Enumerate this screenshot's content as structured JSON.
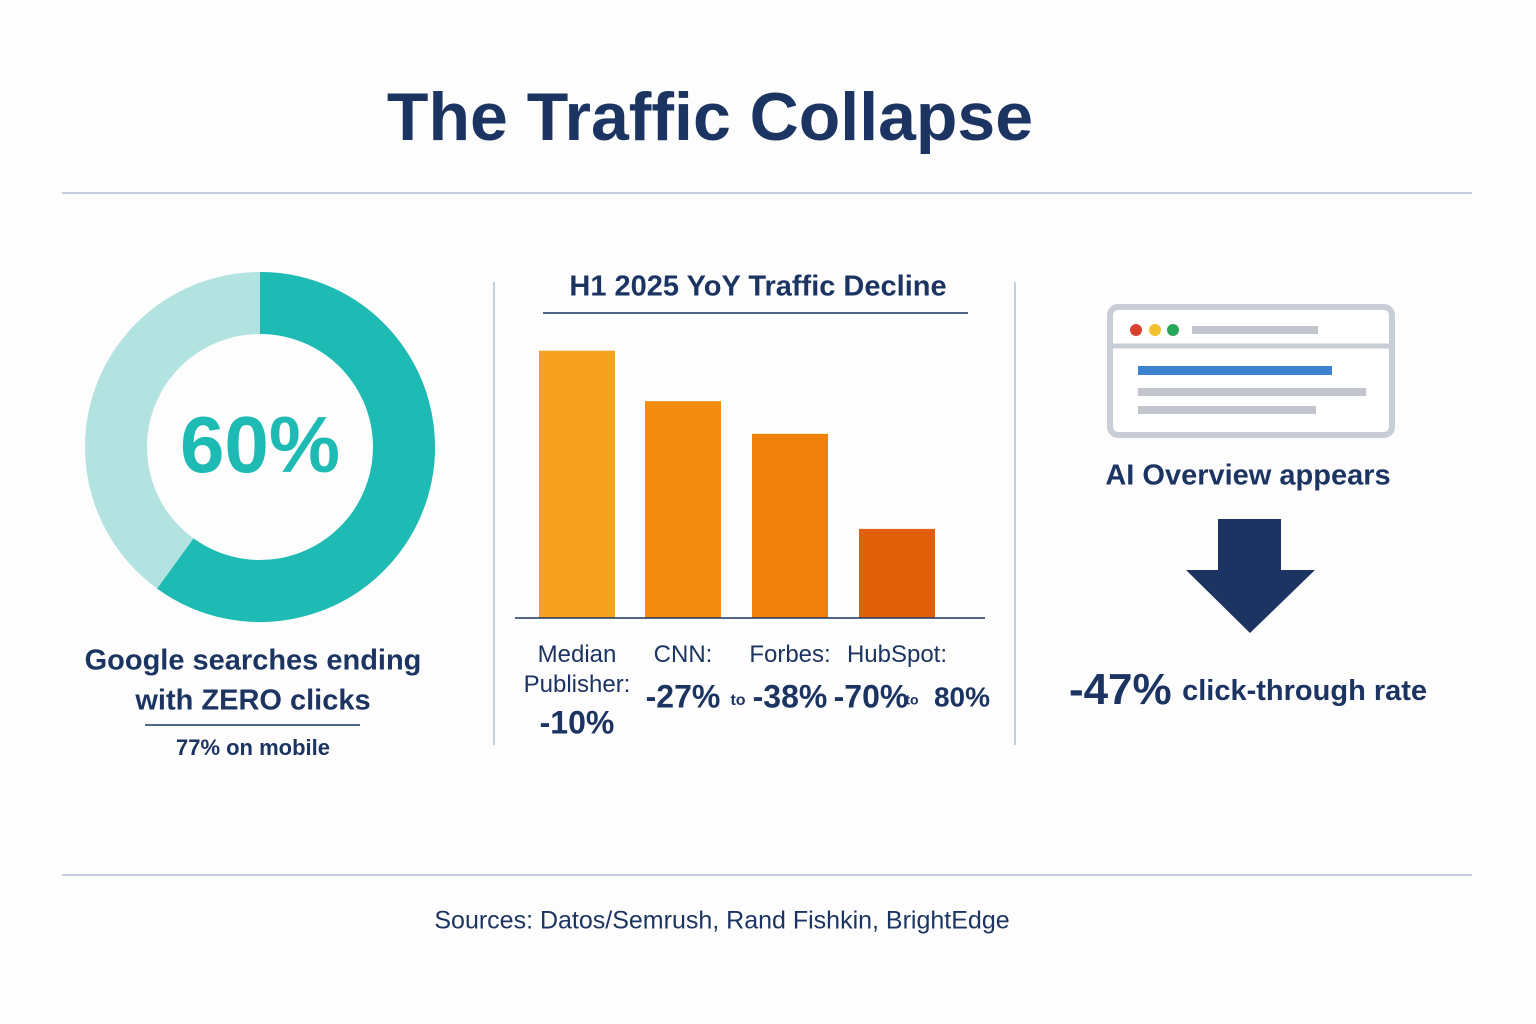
{
  "title": "The Traffic Collapse",
  "chart_data": [
    {
      "type": "donut",
      "values": [
        60
      ],
      "value_labels": [
        "60%"
      ],
      "color": "#1dbbb4",
      "track_color": "#b3e3e0",
      "label_lines": [
        "Google searches ending",
        "with ZERO clicks"
      ],
      "note": "77% on mobile"
    },
    {
      "type": "bar",
      "title": "H1 2025 YoY Traffic Decline",
      "categories": [
        "Median Publisher:",
        "CNN:",
        "Forbes:",
        "HubSpot:"
      ],
      "values": [
        -10,
        -27,
        -38,
        -70
      ],
      "value_labels": [
        "-10%",
        "-27%",
        "-38%",
        "-70%"
      ],
      "annotations": [
        "to",
        "to",
        "80%"
      ],
      "colors": [
        "#f6a11f",
        "#f38d12",
        "#f07f0c",
        "#e0600a"
      ],
      "ylim": [
        -100,
        0
      ]
    }
  ],
  "ai_overview": {
    "label": "AI Overview appears",
    "stat": "-47%",
    "stat_text": "click-through rate"
  },
  "sources": "Sources: Datos/Semrush, Rand Fishkin, BrightEdge"
}
